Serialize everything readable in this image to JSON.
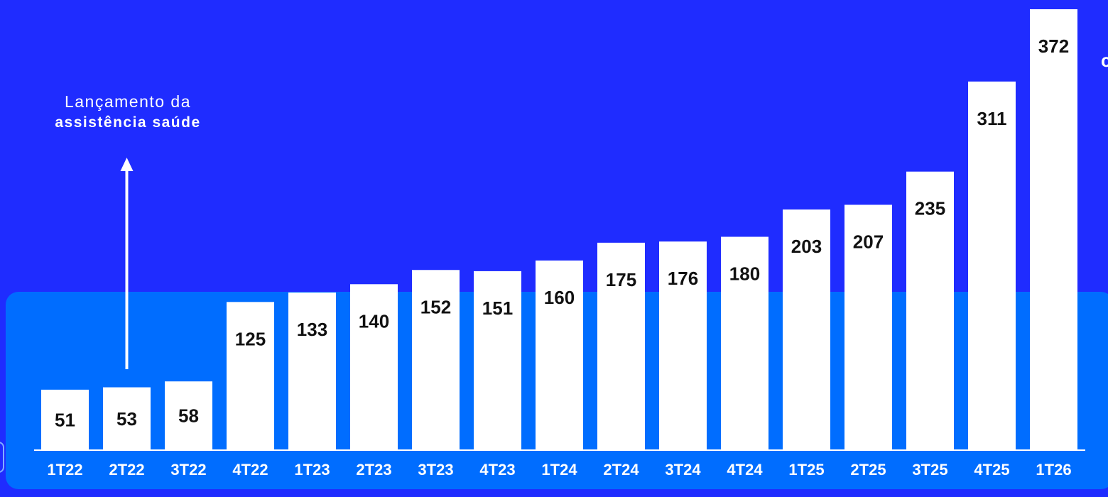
{
  "chart_data": {
    "type": "bar",
    "title": "",
    "xlabel": "",
    "ylabel": "",
    "categories": [
      "1T22",
      "2T22",
      "3T22",
      "4T22",
      "1T23",
      "2T23",
      "3T23",
      "4T23",
      "1T24",
      "2T24",
      "3T24",
      "4T24",
      "1T25",
      "2T25",
      "3T25",
      "4T25",
      "1T26"
    ],
    "values": [
      51,
      53,
      58,
      125,
      133,
      140,
      152,
      151,
      160,
      175,
      176,
      180,
      203,
      207,
      235,
      311,
      372
    ],
    "ylim": [
      0,
      372
    ],
    "grid": false,
    "legend": "none",
    "annotations": [
      {
        "text_line1": "Lançamento da",
        "text_line2": "assistência saúde",
        "category": "2T22",
        "kind": "up-arrow"
      }
    ]
  },
  "colors": {
    "background": "#1f2cff",
    "panel": "#006dff",
    "bar": "#ffffff",
    "value_label": "#111111",
    "tick_label": "#ffffff",
    "axis": "#ffffff"
  }
}
